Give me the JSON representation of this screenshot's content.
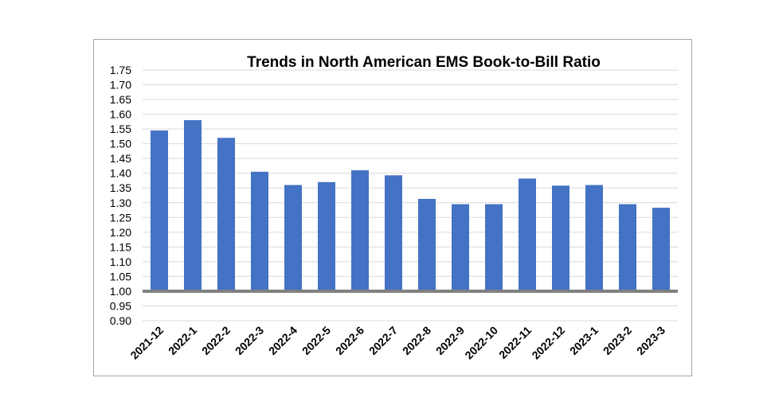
{
  "chart_data": {
    "type": "bar",
    "title": "Trends in North American EMS Book-to-Bill Ratio",
    "xlabel": "",
    "ylabel": "",
    "categories": [
      "2021-12",
      "2022-1",
      "2022-2",
      "2022-3",
      "2022-4",
      "2022-5",
      "2022-6",
      "2022-7",
      "2022-8",
      "2022-9",
      "2022-10",
      "2022-11",
      "2022-12",
      "2023-1",
      "2023-2",
      "2023-3"
    ],
    "values": [
      1.545,
      1.58,
      1.52,
      1.405,
      1.36,
      1.37,
      1.41,
      1.393,
      1.313,
      1.295,
      1.295,
      1.382,
      1.358,
      1.36,
      1.295,
      1.283
    ],
    "baseline": 1.0,
    "ylim": [
      0.9,
      1.75
    ],
    "yticks": [
      "0.90",
      "0.95",
      "1.00",
      "1.05",
      "1.10",
      "1.15",
      "1.20",
      "1.25",
      "1.30",
      "1.35",
      "1.40",
      "1.45",
      "1.50",
      "1.55",
      "1.60",
      "1.65",
      "1.70",
      "1.75"
    ],
    "grid": true,
    "legend": "none",
    "colors": {
      "bar": "#4472c4",
      "baseline": "#808080",
      "grid": "#d9d9d9",
      "border": "#a6a6a6"
    }
  }
}
